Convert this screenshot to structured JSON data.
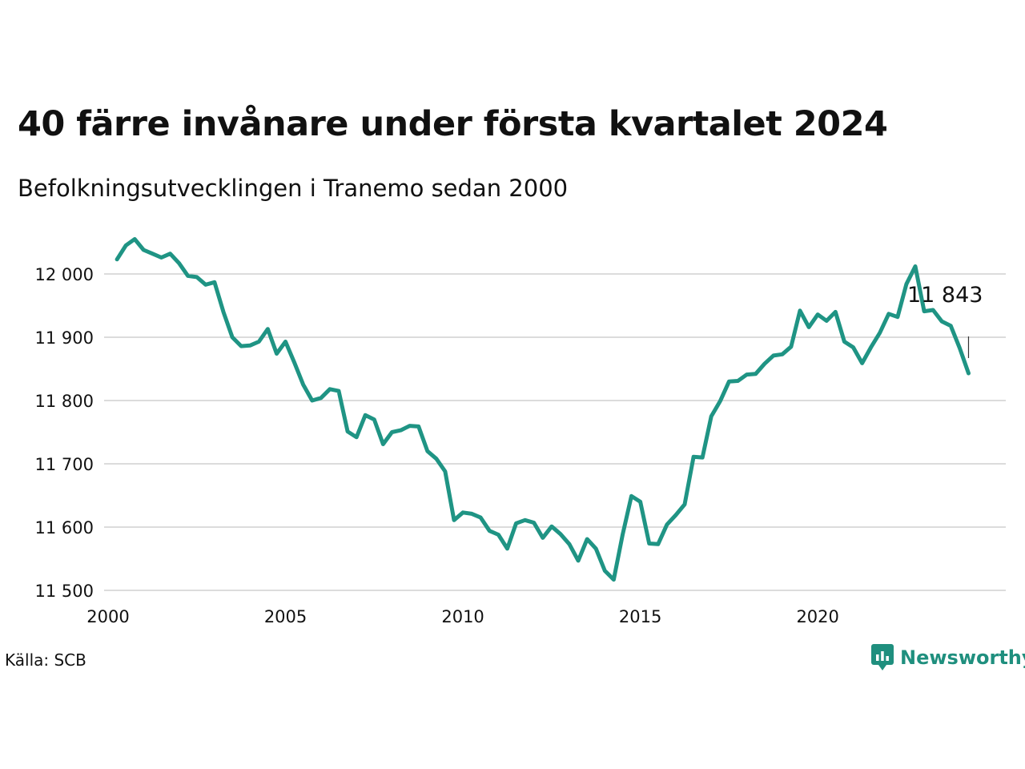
{
  "title": "40 färre invånare under första kvartalet 2024",
  "subtitle": "Befolkningsutvecklingen i Tranemo sedan 2000",
  "source": "Källa: SCB",
  "brand": "Newsworthy",
  "colors": {
    "line": "#1f9484",
    "grid": "#dcdcdc",
    "text": "#111111",
    "brand": "#1f8f7e"
  },
  "icons": {
    "brand_logo": "speech-bubble-bar-chart-icon"
  },
  "chart_data": {
    "type": "line",
    "title": "40 färre invånare under första kvartalet 2024",
    "subtitle": "Befolkningsutvecklingen i Tranemo sedan 2000",
    "xlabel": "",
    "ylabel": "",
    "xlim": [
      2000,
      2025.3
    ],
    "ylim": [
      11500,
      12060
    ],
    "grid": true,
    "x_ticks": [
      2000,
      2005,
      2010,
      2015,
      2020
    ],
    "x_tick_labels": [
      "2000",
      "2005",
      "2010",
      "2015",
      "2020"
    ],
    "y_ticks": [
      11500,
      11600,
      11700,
      11800,
      11900,
      12000
    ],
    "y_tick_labels": [
      "11 500",
      "11 600",
      "11 700",
      "11 800",
      "11 900",
      "12 000"
    ],
    "series": [
      {
        "x": [
          2000.25,
          2000.5,
          2000.75,
          2001.0,
          2001.25,
          2001.5,
          2001.75,
          2002.0,
          2002.25,
          2002.5,
          2002.75,
          2003.0,
          2003.25,
          2003.5,
          2003.75,
          2004.0,
          2004.25,
          2004.5,
          2004.75,
          2005.0,
          2005.25,
          2005.5,
          2005.75,
          2006.0,
          2006.25,
          2006.5,
          2006.75,
          2007.0,
          2007.25,
          2007.5,
          2007.75,
          2008.0,
          2008.25,
          2008.5,
          2008.75,
          2009.0,
          2009.25,
          2009.5,
          2009.75,
          2010.0,
          2010.25,
          2010.5,
          2010.75,
          2011.0,
          2011.25,
          2011.5,
          2011.75,
          2012.0,
          2012.25,
          2012.5,
          2012.75,
          2013.0,
          2013.25,
          2013.5,
          2013.75,
          2014.0,
          2014.25,
          2014.5,
          2014.75,
          2015.0,
          2015.25,
          2015.5,
          2015.75,
          2016.0,
          2016.25,
          2016.5,
          2016.75,
          2017.0,
          2017.25,
          2017.5,
          2017.75,
          2018.0,
          2018.25,
          2018.5,
          2018.75,
          2019.0,
          2019.25,
          2019.5,
          2019.75,
          2020.0,
          2020.25,
          2020.5,
          2020.75,
          2021.0,
          2021.25,
          2021.5,
          2021.75,
          2022.0,
          2022.25,
          2022.5,
          2022.75,
          2023.0,
          2023.25,
          2023.5,
          2023.75,
          2024.0,
          2024.25
        ],
        "values": [
          12023,
          12045,
          12055,
          12038,
          12032,
          12026,
          12032,
          12017,
          11997,
          11995,
          11983,
          11987,
          11940,
          11900,
          11886,
          11887,
          11893,
          11913,
          11874,
          11893,
          11860,
          11825,
          11800,
          11804,
          11818,
          11815,
          11751,
          11742,
          11777,
          11770,
          11731,
          11750,
          11753,
          11760,
          11759,
          11720,
          11708,
          11688,
          11611,
          11623,
          11621,
          11615,
          11594,
          11588,
          11566,
          11606,
          11611,
          11607,
          11583,
          11601,
          11589,
          11573,
          11547,
          11581,
          11566,
          11531,
          11517,
          11588,
          11649,
          11640,
          11574,
          11573,
          11604,
          11619,
          11636,
          11711,
          11710,
          11775,
          11799,
          11830,
          11831,
          11841,
          11842,
          11858,
          11871,
          11873,
          11885,
          11942,
          11916,
          11936,
          11926,
          11940,
          11893,
          11884,
          11859,
          11884,
          11907,
          11937,
          11932,
          11984,
          12012,
          11941,
          11943,
          11925,
          11918,
          11883,
          11843
        ]
      }
    ],
    "annotations": [
      {
        "x": 2024.25,
        "y": 11843,
        "text": "11 843"
      }
    ]
  }
}
